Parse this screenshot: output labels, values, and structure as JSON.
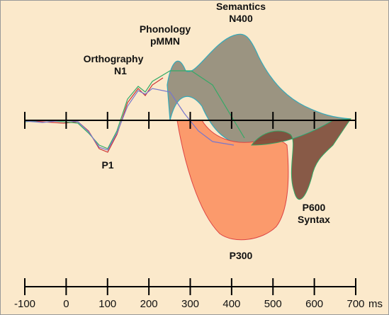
{
  "title_labels": [
    {
      "line1": "Semantics",
      "line2": "N400"
    },
    {
      "line1": "Phonology",
      "line2": "pMMN"
    },
    {
      "line1": "Orthography",
      "line2": "N1"
    },
    {
      "line1": "P1"
    },
    {
      "line1": "P600",
      "line2": "Syntax"
    },
    {
      "line1": "P300"
    }
  ],
  "axis": {
    "ticks": [
      -100,
      0,
      100,
      200,
      300,
      400,
      500,
      600,
      700
    ],
    "unit": "ms"
  }
}
